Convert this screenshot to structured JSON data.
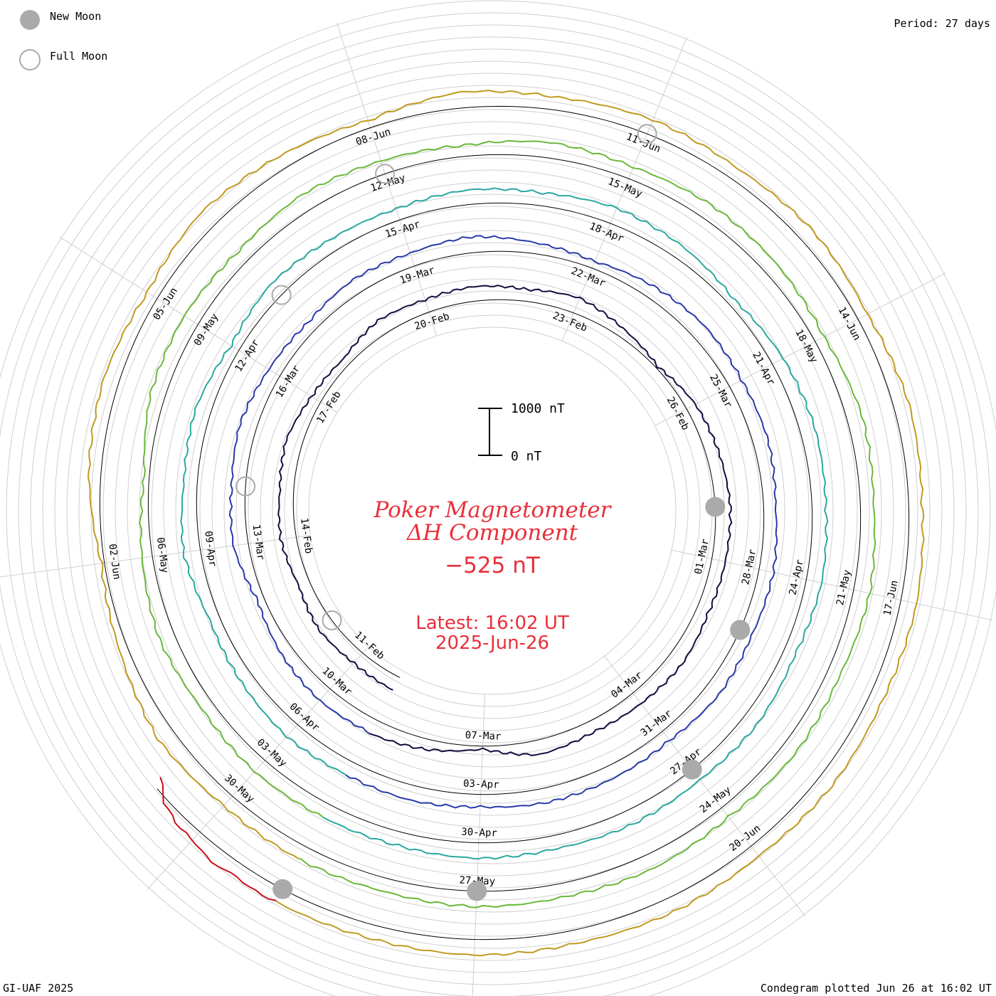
{
  "header": {
    "period": "Period: 27 days",
    "footer_left": "GI-UAF 2025",
    "footer_right": "Condegram plotted Jun 26 at 16:02 UT"
  },
  "legend": [
    {
      "label": "New Moon",
      "symbol": "filled-circle",
      "color": "#aaaaaa"
    },
    {
      "label": "Full Moon",
      "symbol": "open-circle",
      "color": "#aaaaaa"
    }
  ],
  "center": {
    "title_line1": "Poker Magnetometer",
    "title_line2": "ΔH Component",
    "value": "−525 nT",
    "latest": "Latest: 16:02 UT",
    "date": "2025-Jun-26"
  },
  "scale_bar": {
    "top_label": "1000 nT",
    "bottom_label": "0 nT"
  },
  "chart_data": {
    "type": "line",
    "title": "Poker Magnetometer ΔH Component",
    "period_days": 27,
    "units": "nT",
    "latest_value": -525,
    "latest_time": "2025-06-26 16:02 UT",
    "turns": [
      {
        "start": "2025-02-10",
        "color": "#1a0a40",
        "ticks": [
          "11-Feb",
          "14-Feb",
          "17-Feb",
          "20-Feb",
          "23-Feb",
          "26-Feb",
          "01-Mar",
          "04-Mar",
          "07-Mar"
        ]
      },
      {
        "start": "2025-03-09",
        "color": "#2a3aa8",
        "ticks": [
          "10-Mar",
          "13-Mar",
          "16-Mar",
          "19-Mar",
          "22-Mar",
          "25-Mar",
          "28-Mar",
          "31-Mar",
          "03-Apr"
        ]
      },
      {
        "start": "2025-04-05",
        "color": "#2aa8a0",
        "ticks": [
          "06-Apr",
          "09-Apr",
          "12-Apr",
          "15-Apr",
          "18-Apr",
          "21-Apr",
          "24-Apr",
          "27-Apr",
          "30-Apr"
        ]
      },
      {
        "start": "2025-05-02",
        "color": "#6ab83a",
        "ticks": [
          "03-May",
          "06-May",
          "09-May",
          "12-May",
          "15-May",
          "18-May",
          "21-May",
          "24-May",
          "27-May"
        ]
      },
      {
        "start": "2025-05-29",
        "color": "#c09a20",
        "ticks": [
          "30-May",
          "02-Jun",
          "05-Jun",
          "08-Jun",
          "11-Jun",
          "14-Jun",
          "17-Jun",
          "20-Jun"
        ]
      },
      {
        "start": "2025-06-25",
        "color": "#c8101a",
        "ticks": []
      }
    ],
    "trace_samples_nT": [
      [
        0,
        -20,
        40,
        -60,
        30,
        -10,
        50,
        -80,
        -140,
        20,
        -30,
        10,
        -50,
        40,
        -120,
        -260,
        -90,
        -30,
        20,
        -10,
        -40,
        30,
        -20,
        -60,
        10,
        -240,
        -80,
        20
      ],
      [
        0,
        30,
        -40,
        -160,
        20,
        -10,
        60,
        -30,
        -90,
        10,
        -20,
        40,
        -70,
        -150,
        -40,
        30,
        -10,
        20,
        -50,
        10,
        -30,
        20,
        -60,
        -20,
        10,
        -40,
        20,
        0
      ],
      [
        0,
        40,
        -30,
        -90,
        60,
        -20,
        30,
        -110,
        20,
        -40,
        -60,
        10,
        -30,
        50,
        -20,
        -160,
        -40,
        20,
        -10,
        30,
        -50,
        20,
        -30,
        10,
        -20,
        30,
        -10,
        0
      ],
      [
        0,
        20,
        -50,
        30,
        -80,
        -200,
        10,
        40,
        -30,
        60,
        -20,
        -70,
        30,
        -40,
        20,
        -10,
        -90,
        30,
        -20,
        50,
        -30,
        10,
        -60,
        20,
        -10,
        30,
        -20,
        0
      ],
      [
        0,
        -30,
        60,
        -120,
        -240,
        -40,
        30,
        -60,
        90,
        -20,
        -150,
        40,
        -30,
        20,
        -50,
        10,
        -80,
        30,
        -20,
        40,
        -10,
        20,
        -40,
        10,
        -20,
        30,
        -10,
        0
      ],
      [
        0,
        20,
        -30,
        40,
        -60,
        -90,
        -200,
        -525
      ]
    ],
    "moon_phases": [
      {
        "date": "2025-02-12",
        "phase": "Full Moon"
      },
      {
        "date": "2025-02-28",
        "phase": "New Moon"
      },
      {
        "date": "2025-03-14",
        "phase": "Full Moon"
      },
      {
        "date": "2025-03-29",
        "phase": "New Moon"
      },
      {
        "date": "2025-04-13",
        "phase": "Full Moon"
      },
      {
        "date": "2025-04-27",
        "phase": "New Moon"
      },
      {
        "date": "2025-05-12",
        "phase": "Full Moon"
      },
      {
        "date": "2025-05-27",
        "phase": "New Moon"
      },
      {
        "date": "2025-06-11",
        "phase": "Full Moon"
      },
      {
        "date": "2025-06-25",
        "phase": "New Moon"
      }
    ]
  }
}
